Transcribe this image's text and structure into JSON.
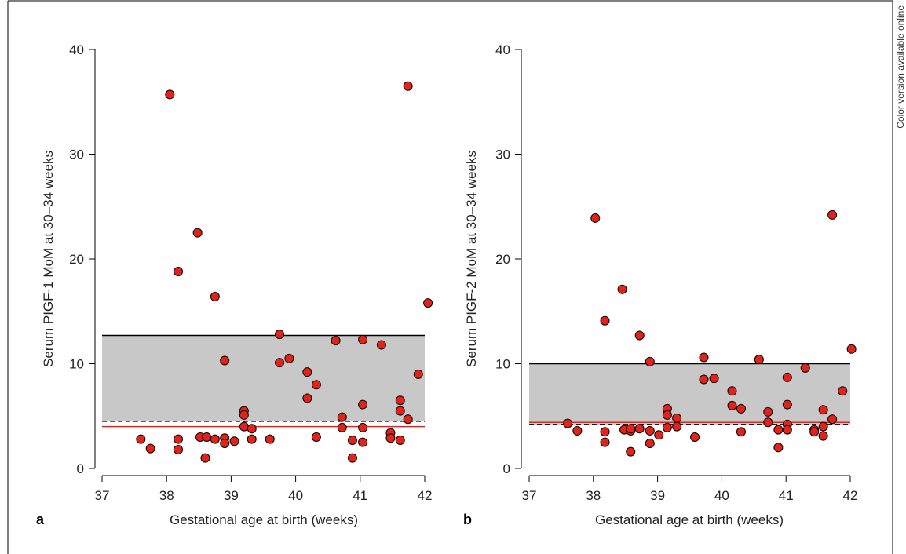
{
  "side_note": "Color version available online",
  "colors": {
    "band_fill": "#c8c8c8",
    "band_line": "#000000",
    "red_line": "#e2231a",
    "dashed_line": "#000000",
    "point_fill": "#e2231a",
    "point_stroke": "#000000"
  },
  "chart_data": [
    {
      "panel": "a",
      "type": "scatter",
      "xlabel": "Gestational age at birth (weeks)",
      "ylabel": "Serum PIGF-1 MoM at 30–34 weeks",
      "xlim": [
        37,
        42
      ],
      "ylim": [
        0,
        40
      ],
      "xticks": [
        "37",
        "38",
        "39",
        "40",
        "41",
        "42"
      ],
      "yticks": [
        "0",
        "10",
        "20",
        "30",
        "40"
      ],
      "band": [
        4.5,
        12.7
      ],
      "solid_red_line": 4.0,
      "dashed_line": 4.5,
      "points": [
        [
          37.6,
          2.8
        ],
        [
          37.75,
          1.9
        ],
        [
          38.05,
          35.7
        ],
        [
          38.18,
          18.8
        ],
        [
          38.18,
          2.8
        ],
        [
          38.18,
          1.8
        ],
        [
          38.48,
          22.5
        ],
        [
          38.52,
          3.0
        ],
        [
          38.62,
          3.0
        ],
        [
          38.6,
          1.0
        ],
        [
          38.75,
          16.4
        ],
        [
          38.75,
          2.8
        ],
        [
          38.9,
          10.3
        ],
        [
          38.9,
          2.9
        ],
        [
          38.9,
          2.4
        ],
        [
          39.05,
          2.6
        ],
        [
          39.2,
          5.5
        ],
        [
          39.2,
          5.1
        ],
        [
          39.2,
          4.0
        ],
        [
          39.32,
          3.8
        ],
        [
          39.32,
          2.8
        ],
        [
          39.6,
          2.8
        ],
        [
          39.75,
          12.8
        ],
        [
          39.75,
          10.1
        ],
        [
          39.9,
          10.5
        ],
        [
          40.18,
          9.2
        ],
        [
          40.18,
          6.7
        ],
        [
          40.32,
          8.0
        ],
        [
          40.32,
          3.0
        ],
        [
          40.62,
          12.2
        ],
        [
          40.72,
          4.9
        ],
        [
          40.72,
          3.9
        ],
        [
          40.88,
          2.7
        ],
        [
          40.88,
          1.0
        ],
        [
          41.04,
          12.3
        ],
        [
          41.04,
          6.1
        ],
        [
          41.04,
          3.9
        ],
        [
          41.04,
          2.5
        ],
        [
          41.33,
          11.8
        ],
        [
          41.47,
          3.4
        ],
        [
          41.47,
          2.9
        ],
        [
          41.62,
          6.5
        ],
        [
          41.62,
          5.5
        ],
        [
          41.62,
          2.7
        ],
        [
          41.74,
          36.5
        ],
        [
          41.74,
          4.7
        ],
        [
          41.9,
          9.0
        ],
        [
          42.05,
          15.8
        ]
      ]
    },
    {
      "panel": "b",
      "type": "scatter",
      "xlabel": "Gestational age at birth (weeks)",
      "ylabel": "Serum PIGF-2 MoM at 30–34 weeks",
      "xlim": [
        37,
        42
      ],
      "ylim": [
        0,
        40
      ],
      "xticks": [
        "37",
        "38",
        "39",
        "40",
        "41",
        "42"
      ],
      "yticks": [
        "0",
        "10",
        "20",
        "30",
        "40"
      ],
      "band": [
        4.2,
        10.0
      ],
      "solid_red_line": 4.4,
      "dashed_line": 4.2,
      "points": [
        [
          37.6,
          4.3
        ],
        [
          37.75,
          3.6
        ],
        [
          38.03,
          23.9
        ],
        [
          38.18,
          14.1
        ],
        [
          38.18,
          3.5
        ],
        [
          38.18,
          2.5
        ],
        [
          38.45,
          17.1
        ],
        [
          38.48,
          3.7
        ],
        [
          38.58,
          3.6
        ],
        [
          38.58,
          3.8
        ],
        [
          38.58,
          1.6
        ],
        [
          38.72,
          12.7
        ],
        [
          38.72,
          3.8
        ],
        [
          38.88,
          10.2
        ],
        [
          38.88,
          3.6
        ],
        [
          38.88,
          2.4
        ],
        [
          39.02,
          3.2
        ],
        [
          39.15,
          5.7
        ],
        [
          39.15,
          5.1
        ],
        [
          39.15,
          3.9
        ],
        [
          39.3,
          4.8
        ],
        [
          39.3,
          4.0
        ],
        [
          39.58,
          3.0
        ],
        [
          39.72,
          10.6
        ],
        [
          39.72,
          8.5
        ],
        [
          39.88,
          8.6
        ],
        [
          40.16,
          7.4
        ],
        [
          40.16,
          6.0
        ],
        [
          40.3,
          5.7
        ],
        [
          40.3,
          3.5
        ],
        [
          40.58,
          10.4
        ],
        [
          40.72,
          5.4
        ],
        [
          40.72,
          4.4
        ],
        [
          40.88,
          3.7
        ],
        [
          40.88,
          2.0
        ],
        [
          41.02,
          8.7
        ],
        [
          41.02,
          6.1
        ],
        [
          41.02,
          4.2
        ],
        [
          41.02,
          3.7
        ],
        [
          41.3,
          9.6
        ],
        [
          41.44,
          3.7
        ],
        [
          41.44,
          3.5
        ],
        [
          41.58,
          5.6
        ],
        [
          41.58,
          4.0
        ],
        [
          41.58,
          3.1
        ],
        [
          41.72,
          24.2
        ],
        [
          41.72,
          4.7
        ],
        [
          41.88,
          7.4
        ],
        [
          42.02,
          11.4
        ]
      ]
    }
  ]
}
